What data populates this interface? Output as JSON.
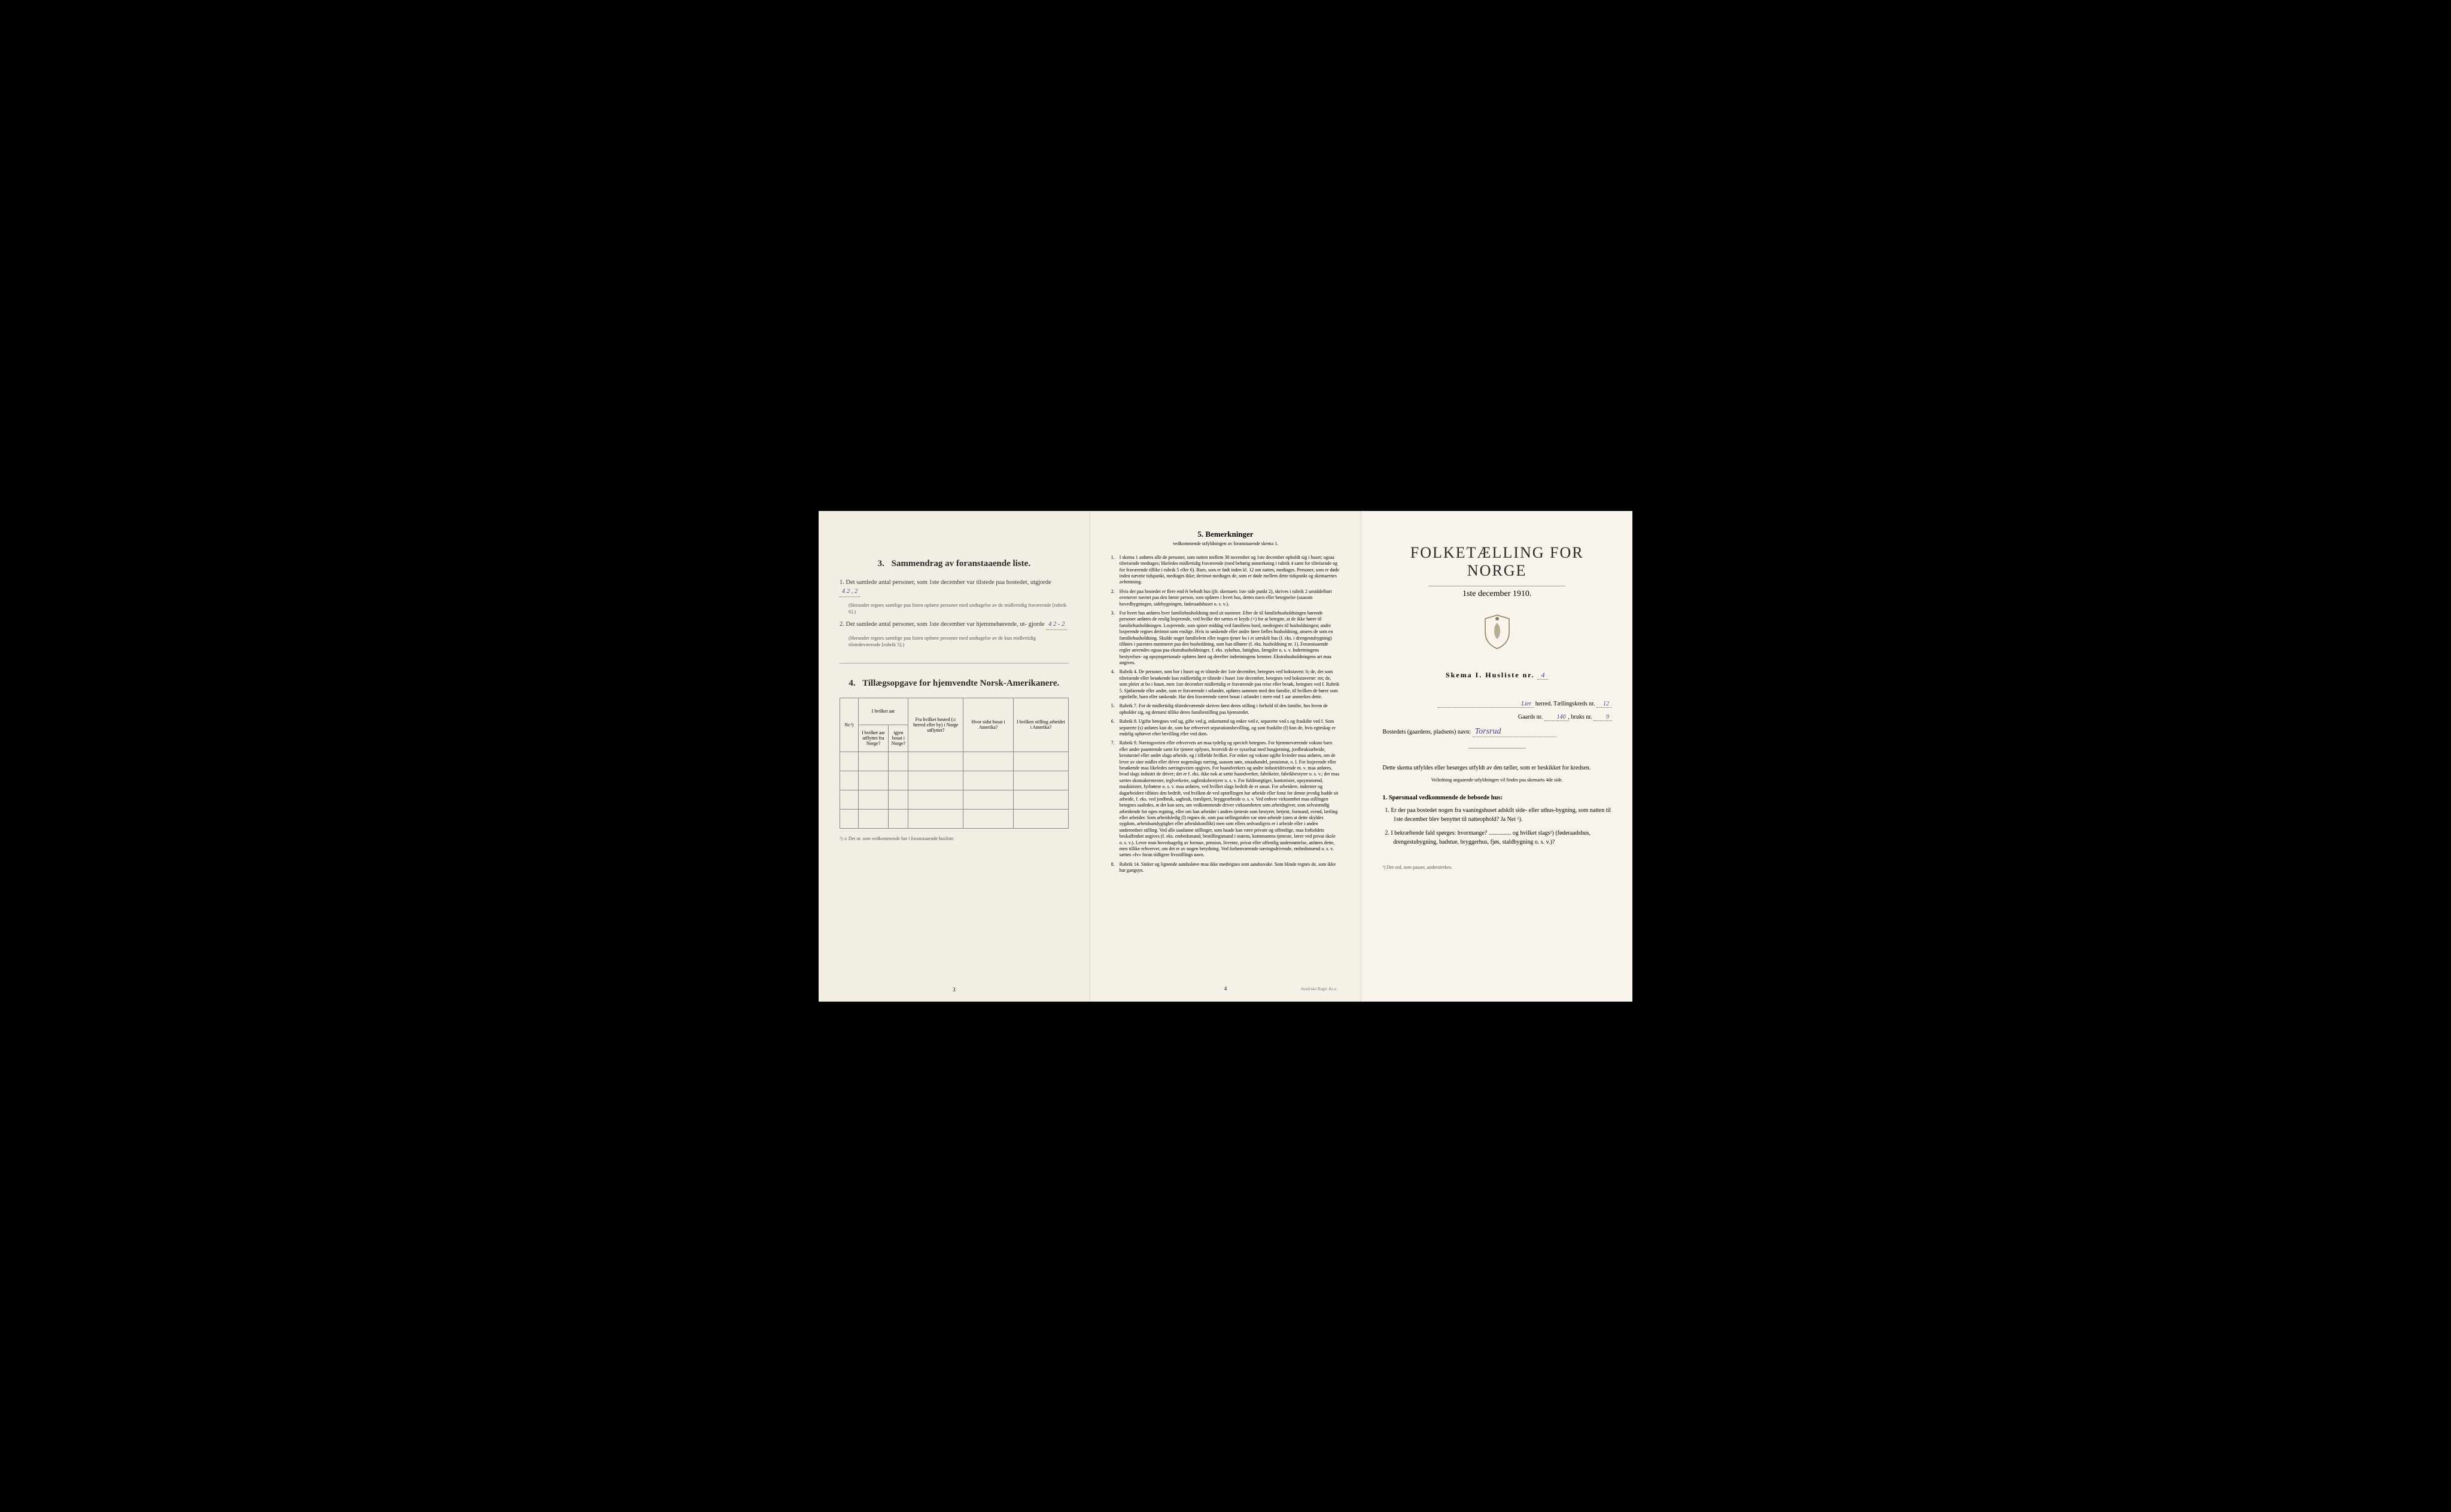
{
  "colors": {
    "paper": "#f5f0e8",
    "paper_right": "#f8f4ec",
    "ink": "#2a2a2a",
    "handwriting": "#4a3a8a",
    "border": "#888888",
    "background": "#000000"
  },
  "left_page": {
    "section3": {
      "number": "3.",
      "title": "Sammendrag av foranstaaende liste.",
      "item1_prefix": "1.  Det samlede antal personer, som 1ste december var tilstede paa bostedet, utgjorde",
      "item1_value": "4   2 , 2",
      "item1_note": "(Herunder regnes samtlige paa listen opførte personer med undtagelse av de midlertidig fraværende [rubrik 6].)",
      "item2_prefix": "2.  Det samlede antal personer, som 1ste december var hjemmehørende, ut- gjorde",
      "item2_value": "4   2 - 2",
      "item2_note": "(Herunder regnes samtlige paa listen opførte personer med undtagelse av de kun midlertidig tilstedeværende [rubrik 5].)"
    },
    "section4": {
      "number": "4.",
      "title": "Tillægsopgave for hjemvendte Norsk-Amerikanere.",
      "table": {
        "columns": [
          "Nr.¹)",
          "I hvilket aar utflyttet fra Norge?",
          "igjen bosat i Norge?",
          "Fra hvilket bosted (ɔ: herred eller by) i Norge utflyttet?",
          "Hvor sidst bosat i Amerika?",
          "I hvilken stilling arbeidet i Amerika?"
        ],
        "row_count": 4
      },
      "footnote": "¹) ɔ: Det nr. som vedkommende har i foranstaaende husliste."
    },
    "page_number": "3"
  },
  "middle_page": {
    "section5": {
      "number": "5.",
      "title": "Bemerkninger",
      "subtitle": "vedkommende utfyldningen av foranstaaende skema 1."
    },
    "remarks": [
      {
        "n": "1.",
        "t": "I skema 1 anføres alle de personer, som natten mellem 30 november og 1ste december opholdt sig i huset; ogsaa tilreisende medtages; likeledes midlertidig fraværende (med behørig anmerkning i rubrik 4 samt for tilreisende og for fraværende tillike i rubrik 5 eller 6). Barn, som er født inden kl. 12 om natten, medtages. Personer, som er døde inden nævnte tidspunkt, medtages ikke; derimot medtages de, som er døde mellem dette tidspunkt og skemaernes avhentning."
      },
      {
        "n": "2.",
        "t": "Hvis der paa bostedet er flere end ét bebodt hus (jfr. skemaets 1ste side punkt 2), skrives i rubrik 2 umiddelbart ovenover navnet paa den første person, som opføres i hvert hus, dettes navn eller betegnelse (saasom hovedbygningen, sidebygningen, føderaadshuset o. s. v.)."
      },
      {
        "n": "3.",
        "t": "For hvert hus anføres hver familiehusholdning med sit nummer. Efter de til familiehusholdningen hørende personer anføres de enslig losjerende, ved hvilke der sættes et kryds (×) for at betegne, at de ikke hører til familiehusholdningen. Losjerende, som spiser middag ved familiens bord, medregnes til husholdningen; andre losjerende regnes derimot som enslige. Hvis to søskende eller andre fører fælles husholdning, ansees de som en familiehusholdning. Skulde noget familielem eller nogen tjener bo i et særskilt hus (f. eks. i drengestubygning) tilføies i parentes nummeret paa den husholdning, som han tilhører (f. eks. husholdning nr. 1).\nForanstaaende regler anvendes ogsaa paa ekstrahusholdninger, f. eks. sykehus, fattighus, fængsler o. s. v. Indretningens bestyrelses- og opsynspersonale opføres først og derefter indretningens lemmer. Ekstrahusholdningens art maa angives."
      },
      {
        "n": "4.",
        "t": "Rubrik 4. De personer, som bor i huset og er tilstede der 1ste december, betegnes ved bokstaven: b; de, der som tilreisende eller besøkende kun midlertidig er tilstede i huset 1ste december, betegnes ved bokstaverne: mt; de, som pleier at bo i huset, men 1ste december midlertidig er fraværende paa reise eller besøk, betegnes ved f.\nRubrik 5. Sjøfarende eller andre, som er fraværende i utlandet, opføres sammen med den familie, til hvilken de hører som egtefælle, barn eller søskende.\nHar den fraværende været bosat i utlandet i mere end 1 aar anmerkes dette."
      },
      {
        "n": "5.",
        "t": "Rubrik 7. For de midlertidig tilstedeværende skrives først deres stilling i forhold til den familie, hos hvem de opholder sig, og dernæst tillike deres familiestilling paa hjemstedet."
      },
      {
        "n": "6.",
        "t": "Rubrik 8. Ugifte betegnes ved ug, gifte ved g, enkemænd og enker ved e, separerte ved s og fraskilte ved f. Som separerte (s) anføres kun de, som har erhvervet separationsbevilling, og som fraskilte (f) kun de, hvis egteskap er endelig ophævet efter bevilling eller ved dom."
      },
      {
        "n": "7.",
        "t": "Rubrik 9. Næringsveien eller erhvervets art maa tydelig og specielt betegnes.\nFor hjemmeværende voksne barn eller andre paarørende samt for tjenere oplyses, hvorvidt de er sysselsat med husgjerning, jordbruksarbeide, kreaturstel eller andet slags arbeide, og i tilfælde hvilket. For enker og voksne ugifte kvinder maa anføres, om de lever av sine midler eller driver nogenslags næring, saasom søm, smaahandel, pensionat, o. l.\nFor losjerende eller besøkende maa likeledes næringsveien opgives.\nFor haandverkers og andre industridrivende m. v. maa anføres, hvad slags industri de driver; det er f. eks. ikke nok at sætte haandverker, fabrikeier, fabrikbestyrer o. s. v.; der maa sættes skomakermester, teglverkeier, sagbruksbestyrer o. s. v.\nFor fuldmægtiger, kontorister, opsynsmænd, maskinister, fyrbøtere o. s. v. maa anføres, ved hvilket slags bedrift de er ansat.\nFor arbeidere, inderster og dagarbeidere tilføies den bedrift, ved hvilken de ved optællingen har arbeide eller forut for denne jevnlig hadde sit arbeide, f. eks. ved jordbruk, sagbruk, træsliperi, bryggearbeide o. s. v.\nVed enhver virksomhet maa stillingen betegnes saaledes, at det kan sees, om vedkommende driver virksomheten som arbeidsgiver, som selvstændig arbeidende for egen regning, eller om han arbeider i andres tjeneste som bestyrer, betjent, formand, svend, lærling eller arbeider.\nSom arbeidsledig (l) regnes de, som paa tællingstiden var uten arbeide (uten at dette skyldes sygdom, arbeidsundygtighet eller arbeidskonflikt) men som ellers sedvanligvis er i arbeide eller i anden underordnet stilling.\nVed alle saadanne stillinger, som baade kan være private og offentlige, maa forholdets beskaffenhet angives (f. eks. embedsmand, bestillingsmand i statens, kommunens tjeneste, lærer ved privat skole o. s. v.).\nLever man hovedsagelig av formue, pension, livrente, privat eller offentlig understøttelse, anføres dette, men tillike erhvervet, om det er av nogen betydning.\nVed forhenværende næringsdrivende, embedsmænd o. s. v. sættes «fv» foran tidligere livsstillings navn."
      },
      {
        "n": "8.",
        "t": "Rubrik 14. Sinker og lignende aandssløve maa ikke medregnes som aandssvake.\nSom blinde regnes de, som ikke har gangsyn."
      }
    ],
    "page_number": "4",
    "printer": "Steen'ske Bogtr. Kr.a."
  },
  "right_page": {
    "main_title": "FOLKETÆLLING FOR NORGE",
    "date": "1ste december 1910.",
    "skema_label": "Skema I.  Husliste nr.",
    "skema_nr": "4",
    "herred_label": "herred.  Tællingskreds nr.",
    "herred_value": "Lier",
    "kreds_nr": "12",
    "gaard_label": "Gaards nr.",
    "gaard_nr": "140",
    "bruk_label": "bruks nr.",
    "bruk_nr": "9",
    "bosted_label": "Bostedets (gaardens, pladsens) navn:",
    "bosted_value": "Torsrud",
    "instruction": "Dette skema utfyldes eller besørges utfyldt av den tæller, som er beskikket for kredsen.",
    "instruction_sub": "Veiledning angaaende utfyldningen vil findes paa skemaets 4de side.",
    "q_heading": "1. Spørsmaal vedkommende de beboede hus:",
    "q1": "1.  Er der paa bostedet nogen fra vaaningshuset adskilt side- eller uthus-bygning, som natten til 1ste december blev benyttet til natteophold?  Ja  Nei ¹).",
    "q2": "2.  I bekræftende fald spørges: hvormange? ............... og hvilket slags¹) (føderaadshus, drengestubygning, badstue, bryggerhus, fjøs, staldbygning o. s. v.)?",
    "footnote": "¹) Det ord, som passer, understrekes."
  }
}
